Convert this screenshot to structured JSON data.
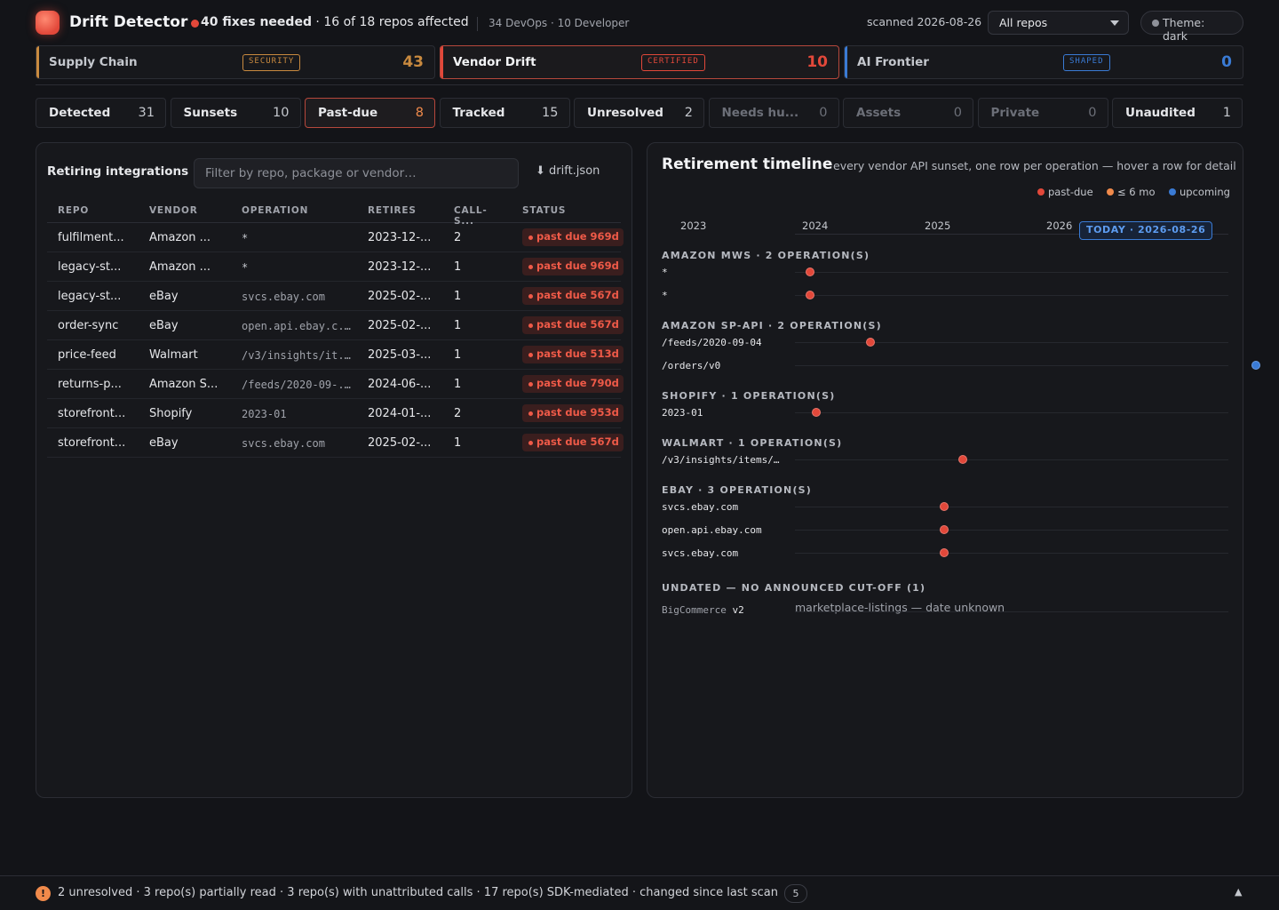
{
  "app": {
    "title": "Drift Detector",
    "fixes_needed": "40 fixes needed",
    "repos_affected": " · 16 of 18 repos affected",
    "team_summary": "34 DevOps · 10 Developer",
    "scanned": "scanned 2026-08-26",
    "repo_filter": "All repos",
    "theme_toggle": "Theme: dark"
  },
  "categories": [
    {
      "name": "Supply Chain",
      "badge": "SECURITY",
      "count": "43",
      "color": "#c98a3f"
    },
    {
      "name": "Vendor Drift",
      "badge": "CERTIFIED",
      "count": "10",
      "color": "#e2483a"
    },
    {
      "name": "AI Frontier",
      "badge": "SHAPED",
      "count": "0",
      "color": "#3a7bd5"
    }
  ],
  "filters": [
    {
      "label": "Detected",
      "count": "31"
    },
    {
      "label": "Sunsets",
      "count": "10"
    },
    {
      "label": "Past-due",
      "count": "8"
    },
    {
      "label": "Tracked",
      "count": "15"
    },
    {
      "label": "Unresolved",
      "count": "2"
    },
    {
      "label": "Needs hu...",
      "count": "0"
    },
    {
      "label": "Assets",
      "count": "0"
    },
    {
      "label": "Private",
      "count": "0"
    },
    {
      "label": "Unaudited",
      "count": "1"
    }
  ],
  "table": {
    "title": "Retiring integrations",
    "search_placeholder": "Filter by repo, package or vendor…",
    "download": "⬇ drift.json",
    "columns": [
      "REPO",
      "VENDOR",
      "OPERATION",
      "RETIRES",
      "CALL-S...",
      "STATUS"
    ],
    "rows": [
      {
        "repo": "fulfilment...",
        "vendor": "Amazon ...",
        "op": "*",
        "retires": "2023-12-...",
        "calls": "2",
        "status": "past due 969d"
      },
      {
        "repo": "legacy-st...",
        "vendor": "Amazon ...",
        "op": "*",
        "retires": "2023-12-...",
        "calls": "1",
        "status": "past due 969d"
      },
      {
        "repo": "legacy-st...",
        "vendor": "eBay",
        "op": "svcs.ebay.com",
        "retires": "2025-02-...",
        "calls": "1",
        "status": "past due 567d"
      },
      {
        "repo": "order-sync",
        "vendor": "eBay",
        "op": "open.api.ebay.c...",
        "retires": "2025-02-...",
        "calls": "1",
        "status": "past due 567d"
      },
      {
        "repo": "price-feed",
        "vendor": "Walmart",
        "op": "/v3/insights/it...",
        "retires": "2025-03-...",
        "calls": "1",
        "status": "past due 513d"
      },
      {
        "repo": "returns-p...",
        "vendor": "Amazon S...",
        "op": "/feeds/2020-09-...",
        "retires": "2024-06-...",
        "calls": "1",
        "status": "past due 790d"
      },
      {
        "repo": "storefront...",
        "vendor": "Shopify",
        "op": "2023-01",
        "retires": "2024-01-...",
        "calls": "2",
        "status": "past due 953d"
      },
      {
        "repo": "storefront...",
        "vendor": "eBay",
        "op": "svcs.ebay.com",
        "retires": "2025-02-...",
        "calls": "1",
        "status": "past due 567d"
      }
    ]
  },
  "timeline": {
    "title": "Retirement timeline",
    "subtitle": "every vendor API sunset, one row per operation — hover a row for detail",
    "legend": [
      {
        "label": "past-due",
        "color": "#e2483a"
      },
      {
        "label": "≤ 6 mo",
        "color": "#f08a4b"
      },
      {
        "label": "upcoming",
        "color": "#3a7bd5"
      }
    ],
    "years": [
      "2023",
      "2024",
      "2025",
      "2026"
    ],
    "today": "TODAY · 2026-08-26",
    "groups": [
      {
        "title": "AMAZON MWS · 2 OPERATION(S)",
        "ops": [
          {
            "label": "*",
            "date": 2023.95,
            "status": "past-due"
          },
          {
            "label": "*",
            "date": 2023.95,
            "status": "past-due"
          }
        ]
      },
      {
        "title": "AMAZON SP-API · 2 OPERATION(S)",
        "ops": [
          {
            "label": "/feeds/2020-09-04",
            "date": 2024.45,
            "status": "past-due"
          },
          {
            "label": "/orders/v0",
            "date": 2027.6,
            "status": "upcoming"
          }
        ]
      },
      {
        "title": "SHOPIFY · 1 OPERATION(S)",
        "ops": [
          {
            "label": "2023-01",
            "date": 2024.0,
            "status": "past-due"
          }
        ]
      },
      {
        "title": "WALMART · 1 OPERATION(S)",
        "ops": [
          {
            "label": "/v3/insights/items/…",
            "date": 2025.2,
            "status": "past-due"
          }
        ]
      },
      {
        "title": "EBAY · 3 OPERATION(S)",
        "ops": [
          {
            "label": "svcs.ebay.com",
            "date": 2025.05,
            "status": "past-due"
          },
          {
            "label": "open.api.ebay.com",
            "date": 2025.05,
            "status": "past-due"
          },
          {
            "label": "svcs.ebay.com",
            "date": 2025.05,
            "status": "past-due"
          }
        ]
      }
    ],
    "undated_title": "UNDATED — NO ANNOUNCED CUT-OFF (1)",
    "undated": {
      "vendor": "BigCommerce",
      "version": "v2",
      "text": "marketplace-listings — date unknown"
    }
  },
  "footer": {
    "icon": "!",
    "text": "2 unresolved · 3 repo(s) partially read · 3 repo(s) with unattributed calls · 17 repo(s) SDK-mediated · changed since last scan",
    "count": "5",
    "expand": "▲"
  }
}
